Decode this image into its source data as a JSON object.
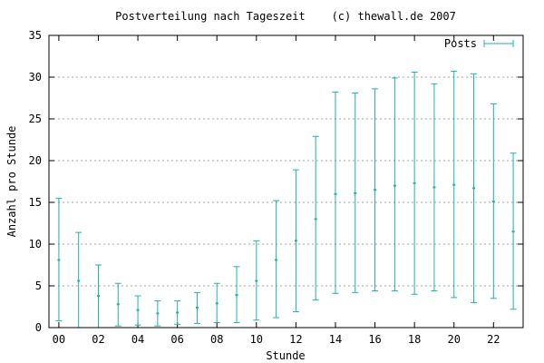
{
  "chart_data": {
    "type": "scatter",
    "title": "Postverteilung nach Tageszeit    (c) thewall.de 2007",
    "xlabel": "Stunde",
    "ylabel": "Anzahl pro Stunde",
    "xlim": [
      -0.5,
      23.5
    ],
    "ylim": [
      0,
      35
    ],
    "x_ticks": [
      0,
      2,
      4,
      6,
      8,
      10,
      12,
      14,
      16,
      18,
      20,
      22
    ],
    "x_tick_labels": [
      "00",
      "02",
      "04",
      "06",
      "08",
      "10",
      "12",
      "14",
      "16",
      "18",
      "20",
      "22"
    ],
    "y_ticks": [
      0,
      5,
      10,
      15,
      20,
      25,
      30,
      35
    ],
    "y_tick_labels": [
      "0",
      "5",
      "10",
      "15",
      "20",
      "25",
      "30",
      "35"
    ],
    "grid": true,
    "legend_position": "top-right",
    "series_color": "#20b2aa",
    "series": [
      {
        "name": "Posts",
        "x": [
          0,
          1,
          2,
          3,
          4,
          5,
          6,
          7,
          8,
          9,
          10,
          11,
          12,
          13,
          14,
          15,
          16,
          17,
          18,
          19,
          20,
          21,
          22,
          23
        ],
        "y": [
          8.1,
          5.6,
          3.8,
          2.8,
          2.1,
          1.7,
          1.8,
          2.4,
          2.9,
          3.9,
          5.6,
          8.1,
          10.4,
          13.0,
          16.0,
          16.1,
          16.5,
          17.0,
          17.3,
          16.8,
          17.1,
          16.7,
          15.1,
          11.5
        ],
        "y_low": [
          0.8,
          0.0,
          0.0,
          0.2,
          0.3,
          0.2,
          0.4,
          0.5,
          0.6,
          0.6,
          0.9,
          1.2,
          1.9,
          3.3,
          4.1,
          4.2,
          4.4,
          4.4,
          4.0,
          4.4,
          3.6,
          3.0,
          3.5,
          2.2
        ],
        "y_high": [
          15.5,
          11.4,
          7.5,
          5.3,
          3.8,
          3.2,
          3.2,
          4.2,
          5.3,
          7.3,
          10.4,
          15.2,
          18.9,
          22.9,
          28.2,
          28.1,
          28.6,
          29.9,
          30.6,
          29.2,
          30.7,
          30.4,
          26.8,
          20.9
        ]
      }
    ]
  }
}
